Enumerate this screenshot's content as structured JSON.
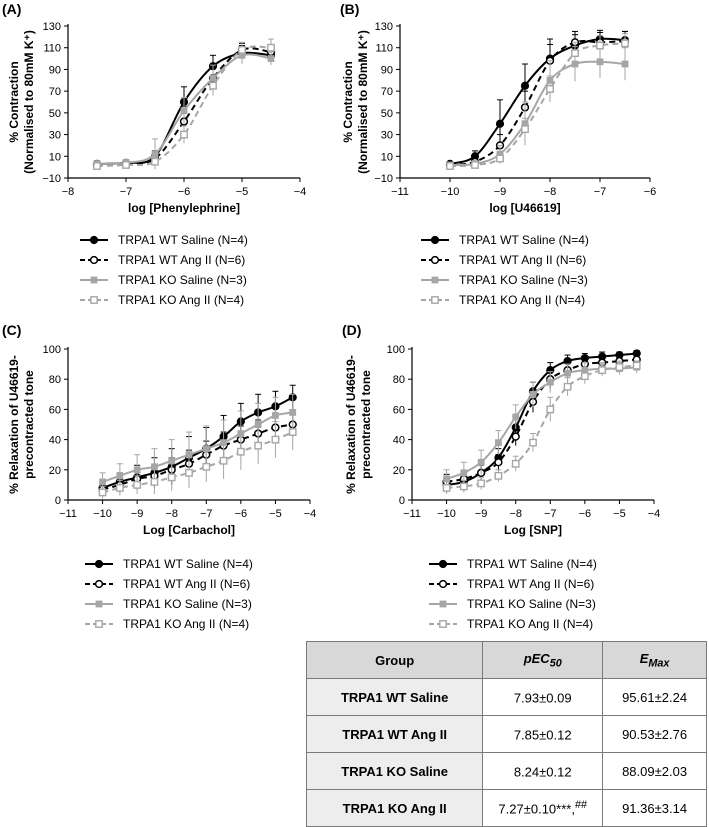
{
  "chart_data": [
    {
      "id": "A",
      "type": "line",
      "panel_label": "(A)",
      "xlabel": "log [Phenylephrine]",
      "ylabel": [
        "% Contraction",
        "(Normalised to 80mM K⁺)"
      ],
      "xlim": [
        -8,
        -4
      ],
      "ylim": [
        -10,
        130
      ],
      "xticks": [
        "−8",
        "−7",
        "−6",
        "−5",
        "−4"
      ],
      "xtick_values": [
        -8,
        -7,
        -6,
        -5,
        -4
      ],
      "yticks": [
        "−10",
        "10",
        "30",
        "50",
        "70",
        "90",
        "110",
        "130"
      ],
      "ytick_values": [
        -10,
        10,
        30,
        50,
        70,
        90,
        110,
        130
      ],
      "x": [
        -7.5,
        -7,
        -6.5,
        -6,
        -5.5,
        -5,
        -4.5
      ],
      "series": [
        {
          "name": "TRPA1 WT Saline (N=4)",
          "values": [
            3,
            4,
            10,
            60,
            93,
            105,
            103
          ],
          "errors": [
            3,
            3,
            5,
            14,
            10,
            7,
            7
          ]
        },
        {
          "name": "TRPA1 WT Ang II (N=6)",
          "values": [
            2,
            3,
            8,
            42,
            82,
            108,
            106
          ],
          "errors": [
            2,
            3,
            5,
            14,
            10,
            6,
            6
          ]
        },
        {
          "name": "TRPA1 KO Saline (N=3)",
          "values": [
            3,
            4,
            12,
            52,
            82,
            103,
            100
          ],
          "errors": [
            3,
            3,
            14,
            12,
            12,
            8,
            6
          ]
        },
        {
          "name": "TRPA1 KO Ang II (N=4)",
          "values": [
            1,
            2,
            5,
            30,
            75,
            108,
            110
          ],
          "errors": [
            2,
            2,
            4,
            8,
            9,
            7,
            8
          ]
        }
      ]
    },
    {
      "id": "B",
      "type": "line",
      "panel_label": "(B)",
      "xlabel": "log [U46619]",
      "ylabel": [
        "% Contraction",
        "(Normalised to 80mM K⁺)"
      ],
      "xlim": [
        -11,
        -6
      ],
      "ylim": [
        -10,
        130
      ],
      "xticks": [
        "−11",
        "−10",
        "−9",
        "−8",
        "−7",
        "−6"
      ],
      "xtick_values": [
        -11,
        -10,
        -9,
        -8,
        -7,
        -6
      ],
      "yticks": [
        "−10",
        "10",
        "30",
        "50",
        "70",
        "90",
        "110",
        "130"
      ],
      "ytick_values": [
        -10,
        10,
        30,
        50,
        70,
        90,
        110,
        130
      ],
      "x": [
        -10,
        -9.5,
        -9,
        -8.5,
        -8,
        -7.5,
        -7,
        -6.5
      ],
      "series": [
        {
          "name": "TRPA1 WT Saline (N=4)",
          "values": [
            3,
            10,
            40,
            75,
            100,
            112,
            118,
            117
          ],
          "errors": [
            2,
            5,
            22,
            20,
            18,
            10,
            8,
            8
          ]
        },
        {
          "name": "TRPA1 WT Ang II (N=6)",
          "values": [
            2,
            5,
            20,
            55,
            98,
            115,
            115,
            116
          ],
          "errors": [
            2,
            4,
            10,
            15,
            15,
            10,
            9,
            9
          ]
        },
        {
          "name": "TRPA1 KO Saline (N=3)",
          "values": [
            2,
            3,
            12,
            40,
            80,
            95,
            97,
            95
          ],
          "errors": [
            2,
            3,
            8,
            20,
            18,
            16,
            15,
            15
          ]
        },
        {
          "name": "TRPA1 KO Ang II (N=4)",
          "values": [
            1,
            2,
            8,
            35,
            72,
            105,
            112,
            114
          ],
          "errors": [
            1,
            2,
            5,
            10,
            12,
            10,
            9,
            9
          ]
        }
      ]
    },
    {
      "id": "C",
      "type": "line",
      "panel_label": "(C)",
      "xlabel": "Log [Carbachol]",
      "ylabel": [
        "% Relaxation of U46619-",
        "precontracted tone"
      ],
      "xlim": [
        -11,
        -4
      ],
      "ylim": [
        0,
        100
      ],
      "xticks": [
        "−11",
        "−10",
        "−9",
        "−8",
        "−7",
        "−6",
        "−5",
        "−4"
      ],
      "xtick_values": [
        -11,
        -10,
        -9,
        -8,
        -7,
        -6,
        -5,
        -4
      ],
      "yticks": [
        "0",
        "20",
        "40",
        "60",
        "80",
        "100"
      ],
      "ytick_values": [
        0,
        20,
        40,
        60,
        80,
        100
      ],
      "x": [
        -10,
        -9.5,
        -9,
        -8.5,
        -8,
        -7.5,
        -7,
        -6.5,
        -6,
        -5.5,
        -5,
        -4.5
      ],
      "series": [
        {
          "name": "TRPA1 WT Saline (N=4)",
          "values": [
            8,
            12,
            15,
            18,
            22,
            28,
            34,
            42,
            52,
            58,
            62,
            68
          ],
          "errors": [
            5,
            6,
            8,
            10,
            12,
            14,
            14,
            14,
            12,
            12,
            10,
            8
          ]
        },
        {
          "name": "TRPA1 WT Ang II (N=6)",
          "values": [
            7,
            10,
            14,
            16,
            20,
            24,
            30,
            36,
            40,
            44,
            48,
            50
          ],
          "errors": [
            4,
            5,
            6,
            7,
            8,
            9,
            9,
            9,
            9,
            9,
            8,
            8
          ]
        },
        {
          "name": "TRPA1 KO Saline (N=3)",
          "values": [
            12,
            16,
            20,
            22,
            26,
            30,
            34,
            38,
            44,
            50,
            56,
            58
          ],
          "errors": [
            6,
            8,
            10,
            12,
            14,
            15,
            15,
            15,
            15,
            14,
            12,
            12
          ]
        },
        {
          "name": "TRPA1 KO Ang II (N=4)",
          "values": [
            5,
            8,
            10,
            12,
            15,
            18,
            22,
            26,
            32,
            36,
            40,
            45
          ],
          "errors": [
            4,
            5,
            6,
            8,
            9,
            10,
            10,
            12,
            12,
            12,
            12,
            12
          ]
        }
      ]
    },
    {
      "id": "D",
      "type": "line",
      "panel_label": "(D)",
      "xlabel": "Log [SNP]",
      "ylabel": [
        "% Relaxation of U46619-",
        "precontracted tone"
      ],
      "xlim": [
        -11,
        -4
      ],
      "ylim": [
        0,
        100
      ],
      "xticks": [
        "−11",
        "−10",
        "−9",
        "−8",
        "−7",
        "−6",
        "−5",
        "−4"
      ],
      "xtick_values": [
        -11,
        -10,
        -9,
        -8,
        -7,
        -6,
        -5,
        -4
      ],
      "yticks": [
        "0",
        "20",
        "40",
        "60",
        "80",
        "100"
      ],
      "ytick_values": [
        0,
        20,
        40,
        60,
        80,
        100
      ],
      "x": [
        -10,
        -9.5,
        -9,
        -8.5,
        -8,
        -7.5,
        -7,
        -6.5,
        -6,
        -5.5,
        -5,
        -4.5
      ],
      "series": [
        {
          "name": "TRPA1 WT Saline (N=4)",
          "values": [
            10,
            12,
            18,
            28,
            48,
            72,
            86,
            92,
            94,
            95,
            96,
            97
          ],
          "errors": [
            5,
            6,
            6,
            6,
            6,
            6,
            5,
            4,
            3,
            3,
            2,
            2
          ]
        },
        {
          "name": "TRPA1 WT Ang II (N=6)",
          "values": [
            12,
            14,
            18,
            25,
            42,
            65,
            80,
            86,
            90,
            91,
            92,
            93
          ],
          "errors": [
            5,
            5,
            5,
            5,
            6,
            7,
            6,
            5,
            4,
            3,
            3,
            3
          ]
        },
        {
          "name": "TRPA1 KO Saline (N=3)",
          "values": [
            14,
            18,
            25,
            38,
            55,
            70,
            78,
            84,
            86,
            87,
            87,
            88
          ],
          "errors": [
            6,
            7,
            8,
            8,
            8,
            8,
            7,
            6,
            5,
            4,
            4,
            4
          ]
        },
        {
          "name": "TRPA1 KO Ang II (N=4)",
          "values": [
            8,
            9,
            11,
            16,
            24,
            38,
            60,
            75,
            82,
            86,
            88,
            89
          ],
          "errors": [
            4,
            4,
            4,
            4,
            5,
            6,
            8,
            6,
            5,
            4,
            4,
            3
          ]
        }
      ]
    }
  ],
  "legend": {
    "entries": [
      "TRPA1 WT Saline (N=4)",
      "TRPA1 WT Ang II (N=6)",
      "TRPA1 KO Saline (N=3)",
      "TRPA1 KO Ang II (N=4)"
    ]
  },
  "series_style": [
    {
      "color": "#000000",
      "marker": "filled-circle",
      "dash": "solid"
    },
    {
      "color": "#000000",
      "marker": "open-circle",
      "dash": "dashed"
    },
    {
      "color": "#a6a6a6",
      "marker": "filled-square",
      "dash": "solid"
    },
    {
      "color": "#a6a6a6",
      "marker": "open-square",
      "dash": "dashed"
    }
  ],
  "table": {
    "headers": {
      "group": "Group",
      "pec50_main": "pEC",
      "pec50_sub": "50",
      "emax_main": "E",
      "emax_sub": "Max"
    },
    "rows": [
      {
        "group": "TRPA1 WT Saline",
        "pec50": "7.93±0.09",
        "pec50_sup": "",
        "emax": "95.61±2.24"
      },
      {
        "group": "TRPA1 WT Ang II",
        "pec50": "7.85±0.12",
        "pec50_sup": "",
        "emax": "90.53±2.76"
      },
      {
        "group": "TRPA1 KO Saline",
        "pec50": "8.24±0.12",
        "pec50_sup": "",
        "emax": "88.09±2.03"
      },
      {
        "group": "TRPA1 KO Ang II",
        "pec50": "7.27±0.10***,",
        "pec50_sup": "##",
        "emax": "91.36±3.14"
      }
    ]
  }
}
